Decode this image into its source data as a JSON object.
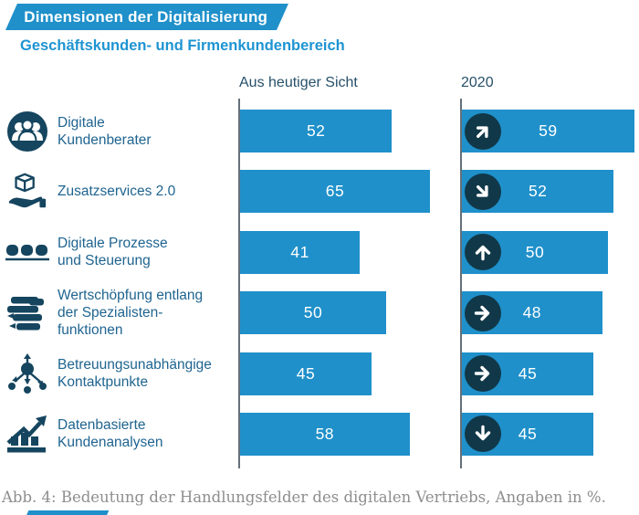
{
  "title_banner": "Dimensionen der Digitalisierung",
  "subtitle": "Geschäftskunden- und Firmenkundenbereich",
  "column_headers": {
    "current": "Aus heutiger Sicht",
    "future": "2020"
  },
  "rows": [
    {
      "icon": "people-group-icon",
      "label_lines": [
        "Digitale",
        "Kundenberater"
      ],
      "current": 52,
      "future": 59,
      "trend": "up-right"
    },
    {
      "icon": "hand-cube-icon",
      "label_lines": [
        "Zusatzservices 2.0"
      ],
      "current": 65,
      "future": 52,
      "trend": "down-right"
    },
    {
      "icon": "process-chain-icon",
      "label_lines": [
        "Digitale Prozesse",
        "und Steuerung"
      ],
      "current": 41,
      "future": 50,
      "trend": "up"
    },
    {
      "icon": "specialist-stack-icon",
      "label_lines": [
        "Wertschöpfung entlang",
        "der Spezialisten-",
        "funktionen"
      ],
      "current": 50,
      "future": 48,
      "trend": "right"
    },
    {
      "icon": "network-hub-icon",
      "label_lines": [
        "Betreuungsunabhängige",
        "Kontaktpunkte"
      ],
      "current": 45,
      "future": 45,
      "trend": "right"
    },
    {
      "icon": "data-analytics-icon",
      "label_lines": [
        "Datenbasierte",
        "Kundenanalysen"
      ],
      "current": 58,
      "future": 45,
      "trend": "down"
    }
  ],
  "chart_data": {
    "type": "bar",
    "orientation": "horizontal",
    "title": "Dimensionen der Digitalisierung",
    "subtitle": "Geschäftskunden- und Firmenkundenbereich",
    "unit": "%",
    "categories": [
      "Digitale Kundenberater",
      "Zusatzservices 2.0",
      "Digitale Prozesse und Steuerung",
      "Wertschöpfung entlang der Spezialistenfunktionen",
      "Betreuungsunabhängige Kontaktpunkte",
      "Datenbasierte Kundenanalysen"
    ],
    "series": [
      {
        "name": "Aus heutiger Sicht",
        "values": [
          52,
          65,
          41,
          50,
          45,
          58
        ]
      },
      {
        "name": "2020",
        "values": [
          59,
          52,
          50,
          48,
          45,
          45
        ],
        "trend_arrows": [
          "up-right",
          "down-right",
          "up",
          "right",
          "right",
          "down"
        ]
      }
    ],
    "xlim": [
      0,
      62
    ],
    "grid": false,
    "legend_position": "column-headers"
  },
  "caption": "Abb. 4: Bedeutung der Handlungsfelder des digitalen Vertriebs, Angaben in %.",
  "colors": {
    "bar_blue": "#1f90ca",
    "banner_blue": "#1f90ca",
    "subtitle_blue": "#1e94d2",
    "icon_navy": "#15455f",
    "trend_circle_navy": "#113848",
    "label_blue": "#1f6490",
    "header_navy": "#27506a",
    "axis_gray": "#65707a",
    "caption_gray": "#8e8e8e"
  }
}
